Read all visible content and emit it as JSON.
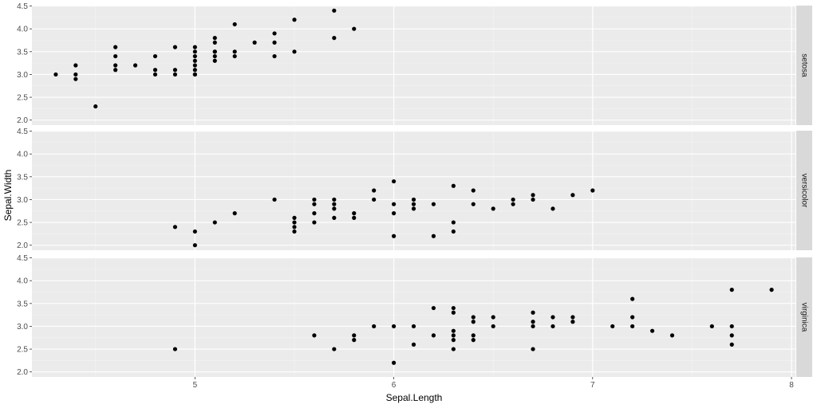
{
  "chart_data": {
    "type": "scatter",
    "xlabel": "Sepal.Length",
    "ylabel": "Sepal.Width",
    "xlim": [
      4.18,
      8.02
    ],
    "ylim": [
      1.89,
      4.51
    ],
    "x_ticks": [
      "5",
      "6",
      "7",
      "8"
    ],
    "y_ticks": [
      "2.0",
      "2.5",
      "3.0",
      "3.5",
      "4.0",
      "4.5"
    ],
    "grid": true,
    "panel_background": "#ebebeb",
    "strip_background": "#d9d9d9",
    "point_color": "#000000",
    "facets": [
      {
        "label": "setosa",
        "x": [
          4.3,
          4.4,
          4.4,
          4.4,
          4.5,
          4.6,
          4.6,
          4.6,
          4.6,
          4.7,
          4.8,
          4.8,
          4.8,
          4.9,
          4.9,
          4.9,
          5.0,
          5.0,
          5.0,
          5.0,
          5.0,
          5.0,
          5.0,
          5.0,
          5.1,
          5.1,
          5.1,
          5.1,
          5.1,
          5.1,
          5.2,
          5.2,
          5.2,
          5.3,
          5.4,
          5.4,
          5.4,
          5.5,
          5.5,
          5.7,
          5.7,
          5.8
        ],
        "y": [
          3.0,
          3.2,
          3.0,
          2.9,
          2.3,
          3.6,
          3.4,
          3.2,
          3.1,
          3.2,
          3.4,
          3.1,
          3.0,
          3.6,
          3.1,
          3.0,
          3.6,
          3.5,
          3.4,
          3.3,
          3.2,
          3.1,
          3.0,
          3.0,
          3.8,
          3.7,
          3.5,
          3.4,
          3.3,
          3.5,
          4.1,
          3.5,
          3.4,
          3.7,
          3.9,
          3.7,
          3.4,
          4.2,
          3.5,
          4.4,
          3.8,
          4.0
        ]
      },
      {
        "label": "versicolor",
        "x": [
          4.9,
          5.0,
          5.0,
          5.1,
          5.2,
          5.4,
          5.5,
          5.5,
          5.5,
          5.5,
          5.6,
          5.6,
          5.6,
          5.6,
          5.7,
          5.7,
          5.7,
          5.7,
          5.8,
          5.8,
          5.9,
          5.9,
          6.0,
          6.0,
          6.0,
          6.0,
          6.1,
          6.1,
          6.1,
          6.2,
          6.2,
          6.3,
          6.3,
          6.3,
          6.4,
          6.4,
          6.5,
          6.6,
          6.6,
          6.7,
          6.7,
          6.8,
          6.9,
          7.0
        ],
        "y": [
          2.4,
          2.3,
          2.0,
          2.5,
          2.7,
          3.0,
          2.6,
          2.5,
          2.4,
          2.3,
          3.0,
          2.9,
          2.7,
          2.5,
          3.0,
          2.9,
          2.8,
          2.6,
          2.7,
          2.6,
          3.2,
          3.0,
          3.4,
          2.9,
          2.7,
          2.2,
          3.0,
          2.9,
          2.8,
          2.9,
          2.2,
          3.3,
          2.5,
          2.3,
          3.2,
          2.9,
          2.8,
          3.0,
          2.9,
          3.1,
          3.0,
          2.8,
          3.1,
          3.2
        ]
      },
      {
        "label": "virginica",
        "x": [
          4.9,
          5.6,
          5.7,
          5.8,
          5.8,
          5.9,
          6.0,
          6.0,
          6.1,
          6.1,
          6.2,
          6.2,
          6.3,
          6.3,
          6.3,
          6.3,
          6.3,
          6.3,
          6.4,
          6.4,
          6.4,
          6.4,
          6.5,
          6.5,
          6.7,
          6.7,
          6.7,
          6.7,
          6.8,
          6.8,
          6.9,
          6.9,
          7.1,
          7.2,
          7.2,
          7.2,
          7.3,
          7.4,
          7.6,
          7.7,
          7.7,
          7.7,
          7.7,
          7.9
        ],
        "y": [
          2.5,
          2.8,
          2.5,
          2.8,
          2.7,
          3.0,
          3.0,
          2.2,
          3.0,
          2.6,
          3.4,
          2.8,
          3.4,
          3.3,
          2.9,
          2.8,
          2.7,
          2.5,
          3.2,
          3.1,
          2.8,
          2.7,
          3.2,
          3.0,
          3.3,
          3.1,
          3.0,
          2.5,
          3.2,
          3.0,
          3.2,
          3.1,
          3.0,
          3.6,
          3.2,
          3.0,
          2.9,
          2.8,
          3.0,
          3.8,
          3.0,
          2.8,
          2.6,
          3.8
        ]
      }
    ]
  }
}
